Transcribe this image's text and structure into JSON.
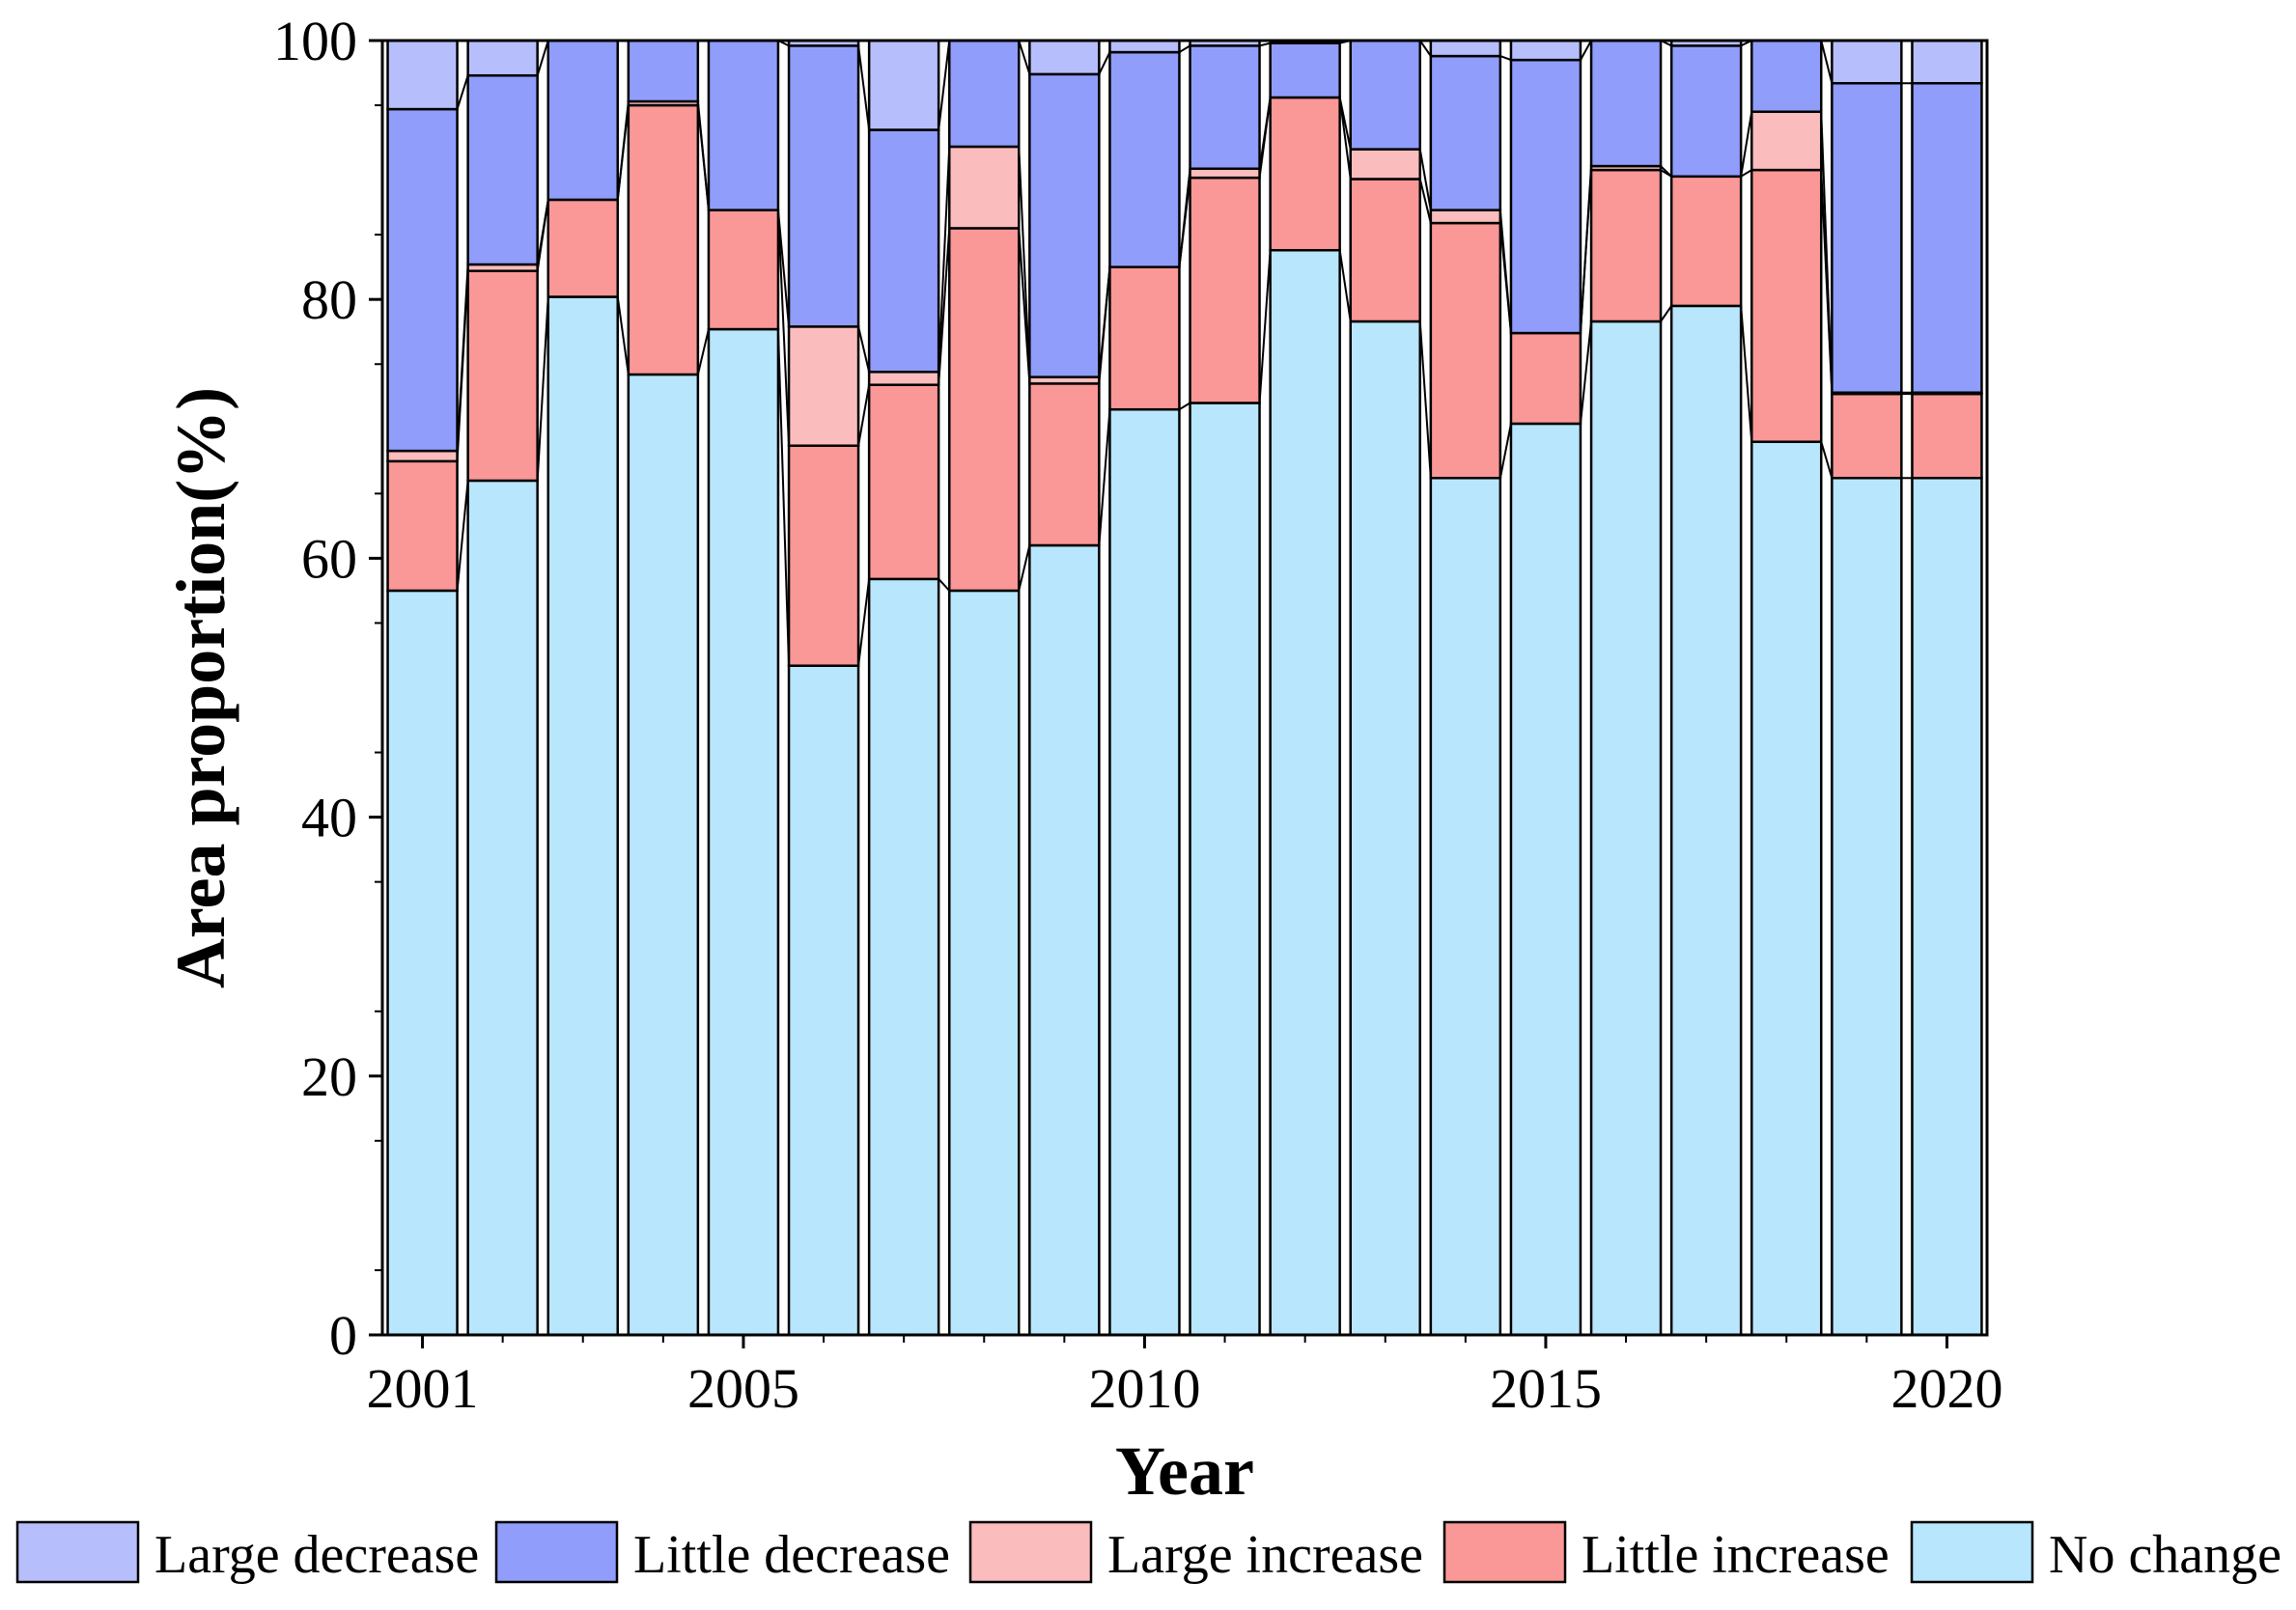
{
  "chart_data": {
    "type": "bar",
    "stacked": true,
    "xlabel": "Year",
    "ylabel": "Area proportion(%)",
    "ylim": [
      0,
      100
    ],
    "yticks": [
      0,
      20,
      40,
      60,
      80,
      100
    ],
    "xtick_labels": [
      {
        "year": 2001,
        "label": "2001"
      },
      {
        "year": 2005,
        "label": "2005"
      },
      {
        "year": 2010,
        "label": "2010"
      },
      {
        "year": 2015,
        "label": "2015"
      },
      {
        "year": 2020,
        "label": "2020"
      }
    ],
    "categories": [
      "2001",
      "2002",
      "2003",
      "2004",
      "2005",
      "2006",
      "2007",
      "2008",
      "2009",
      "2010",
      "2011",
      "2012",
      "2013",
      "2014",
      "2015",
      "2016",
      "2017",
      "2018",
      "2019",
      "2020"
    ],
    "series": [
      {
        "name": "No change",
        "color": "#b8e6fd",
        "values": [
          57.5,
          66,
          80.2,
          74.2,
          77.7,
          51.7,
          58.4,
          57.5,
          61.0,
          71.5,
          72.0,
          83.8,
          78.3,
          66.2,
          70.4,
          78.3,
          79.5,
          69.0,
          66.2,
          66.2
        ]
      },
      {
        "name": "Little increase",
        "color": "#fa9797",
        "values": [
          10.0,
          16.2,
          7.5,
          20.8,
          9.2,
          17.0,
          15.0,
          28.0,
          12.5,
          11.0,
          17.4,
          11.8,
          11.0,
          19.7,
          7.0,
          11.7,
          10.0,
          21.0,
          6.5,
          6.5
        ]
      },
      {
        "name": "Large increase",
        "color": "#fbbcbd",
        "values": [
          0.8,
          0.5,
          0,
          0.3,
          0,
          9.2,
          1.0,
          6.3,
          0.5,
          0,
          0.7,
          0,
          2.3,
          1.0,
          0,
          0.3,
          0,
          4.5,
          0.1,
          0.1
        ]
      },
      {
        "name": "Little decrease",
        "color": "#909dfa",
        "values": [
          26.4,
          14.6,
          12.3,
          4.7,
          13.1,
          21.7,
          18.7,
          8.2,
          23.4,
          16.6,
          9.5,
          4.2,
          8.4,
          11.9,
          21.1,
          9.7,
          10.1,
          5.5,
          23.9,
          23.9
        ]
      },
      {
        "name": "Large decrease",
        "color": "#b6bffb",
        "values": [
          5.3,
          2.7,
          0.2,
          0,
          0.2,
          0.4,
          6.9,
          0,
          2.6,
          0.9,
          0.4,
          0.2,
          0,
          1.2,
          1.5,
          0,
          0.4,
          0,
          3.3,
          3.3
        ]
      }
    ],
    "legend": {
      "position": "bottom",
      "order": [
        "Large decrease",
        "Little decrease",
        "Large increase",
        "Little increase",
        "No change"
      ]
    }
  }
}
